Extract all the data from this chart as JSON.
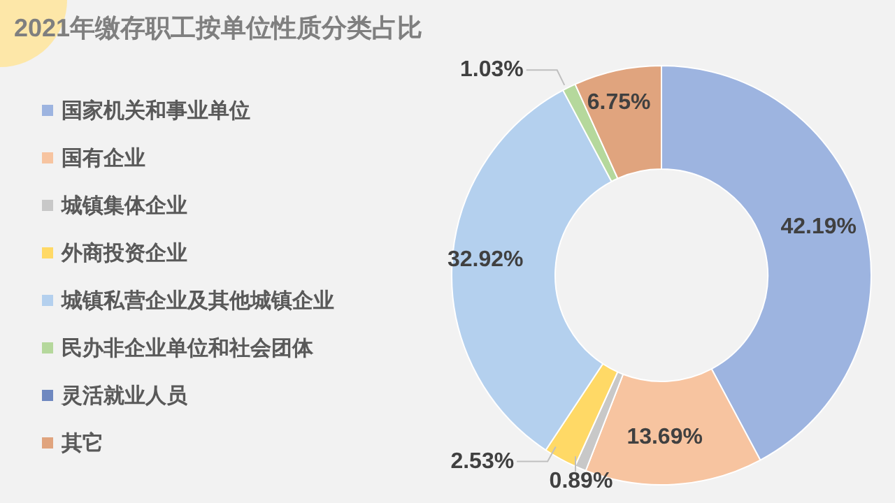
{
  "chart_data": {
    "type": "donut",
    "title": "2021年缴存职工按单位性质分类占比",
    "categories": [
      "国家机关和事业单位",
      "国有企业",
      "城镇集体企业",
      "外商投资企业",
      "城镇私营企业及其他城镇企业",
      "民办非企业单位和社会团体",
      "灵活就业人员",
      "其它"
    ],
    "values": [
      42.19,
      13.69,
      0.89,
      2.53,
      32.92,
      1.03,
      null,
      6.75
    ],
    "value_labels": [
      "42.19%",
      "13.69%",
      "0.89%",
      "2.53%",
      "32.92%",
      "1.03%",
      null,
      "6.75%"
    ],
    "colors": [
      "#9db4e0",
      "#f7c4a0",
      "#c8c8c8",
      "#ffd966",
      "#b4d0ee",
      "#b5d89c",
      "#6f88c0",
      "#e0a47e"
    ],
    "legend": "left"
  }
}
